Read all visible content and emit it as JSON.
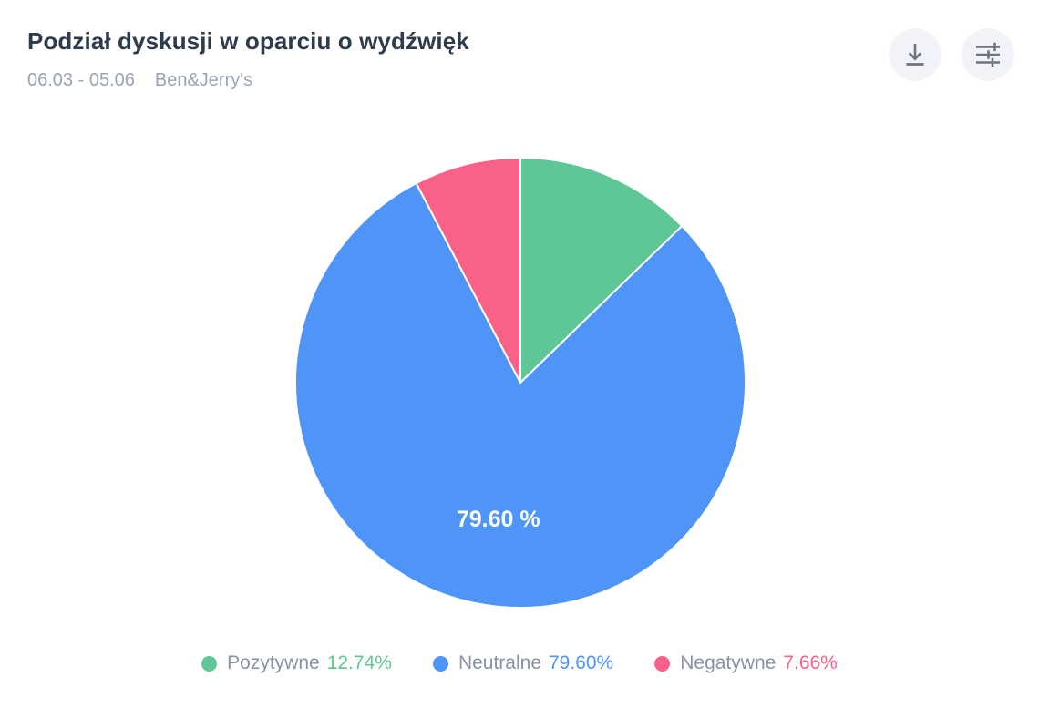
{
  "header": {
    "title": "Podział dyskusji w oparciu o wydźwięk",
    "date_range": "06.03 - 05.06",
    "brand": "Ben&Jerry's",
    "actions": [
      {
        "icon": "download-icon"
      },
      {
        "icon": "sliders-icon"
      }
    ]
  },
  "colors": {
    "title_text": "#2e3b4d",
    "muted_text": "#9aa3b6",
    "legend_text": "#8a92a4",
    "icon_button_bg": "#f1f3f8",
    "icon_stroke": "#6e757e",
    "slice_separator": "#ffffff",
    "slice_label_text": "#ffffff"
  },
  "chart_data": {
    "type": "pie",
    "title": "Podział dyskusji w oparciu o wydźwięk",
    "unit": "%",
    "start_angle_deg": 0,
    "direction": "clockwise",
    "legend_position": "bottom",
    "slices": [
      {
        "key": "pozytywne",
        "name": "Pozytywne",
        "value": 12.74,
        "percent_label": "12.74%",
        "color": "#5fc795"
      },
      {
        "key": "neutralne",
        "name": "Neutralne",
        "value": 79.6,
        "percent_label": "79.60%",
        "color": "#4f94f7",
        "slice_label": "79.60 %"
      },
      {
        "key": "negatywne",
        "name": "Negatywne",
        "value": 7.66,
        "percent_label": "7.66%",
        "color": "#fa6188"
      }
    ]
  }
}
